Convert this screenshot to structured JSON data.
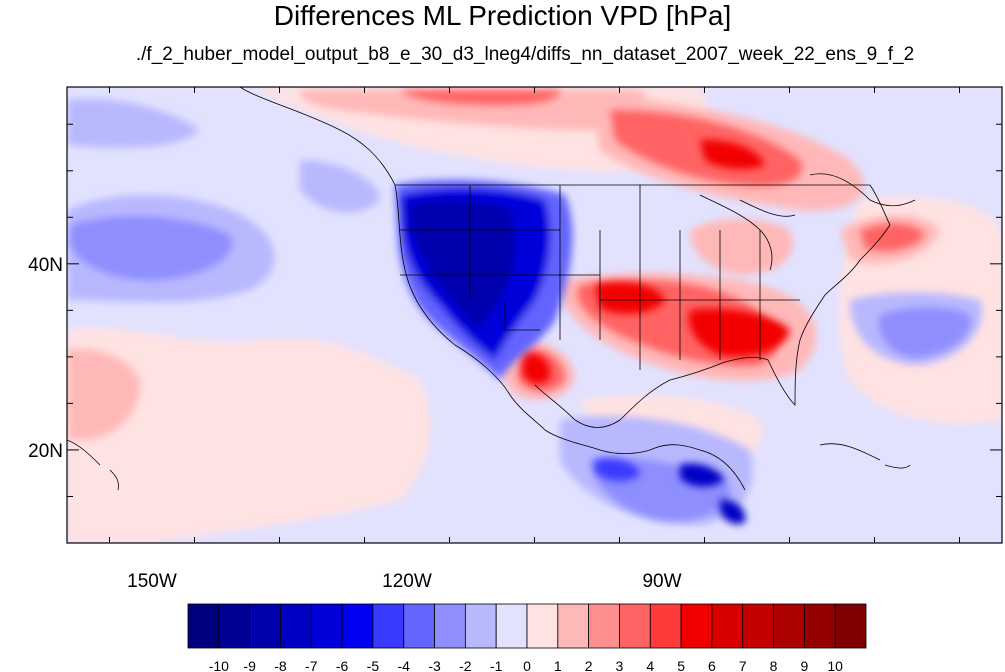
{
  "title": "Differences ML Prediction VPD [hPa]",
  "subtitle": "./f_2_huber_model_output_b8_e_30_d3_lneg4/diffs_nn_dataset_2007_week_22_ens_9_f_2",
  "map": {
    "lon_range": [
      -160,
      -50
    ],
    "lat_range": [
      10,
      59
    ],
    "lat_tick_labels": [
      {
        "lat": 40,
        "label": "40N"
      },
      {
        "lat": 20,
        "label": "20N"
      }
    ],
    "lon_tick_labels": [
      {
        "lon": -150,
        "label": "150W"
      },
      {
        "lon": -120,
        "label": "120W"
      },
      {
        "lon": -90,
        "label": "90W"
      }
    ]
  },
  "colorbar": {
    "labels": [
      "-10",
      "-9",
      "-8",
      "-7",
      "-6",
      "-5",
      "-4",
      "-3",
      "-2",
      "-1",
      "0",
      "1",
      "2",
      "3",
      "4",
      "5",
      "6",
      "7",
      "8",
      "9",
      "10"
    ],
    "colors": [
      "#00007f",
      "#000096",
      "#0000ad",
      "#0000c4",
      "#0000db",
      "#0000f2",
      "#3a3aff",
      "#6464ff",
      "#8e8eff",
      "#b8b8ff",
      "#e2e2ff",
      "#ffe2e2",
      "#ffb8b8",
      "#ff8e8e",
      "#ff6464",
      "#ff3a3a",
      "#f20000",
      "#db0000",
      "#c40000",
      "#ad0000",
      "#960000",
      "#7f0000"
    ]
  },
  "colors": {
    "background_field": "#e2e2ff",
    "strong_negative": "#0000c4",
    "strong_positive": "#f20000",
    "coastline": "#000000"
  }
}
